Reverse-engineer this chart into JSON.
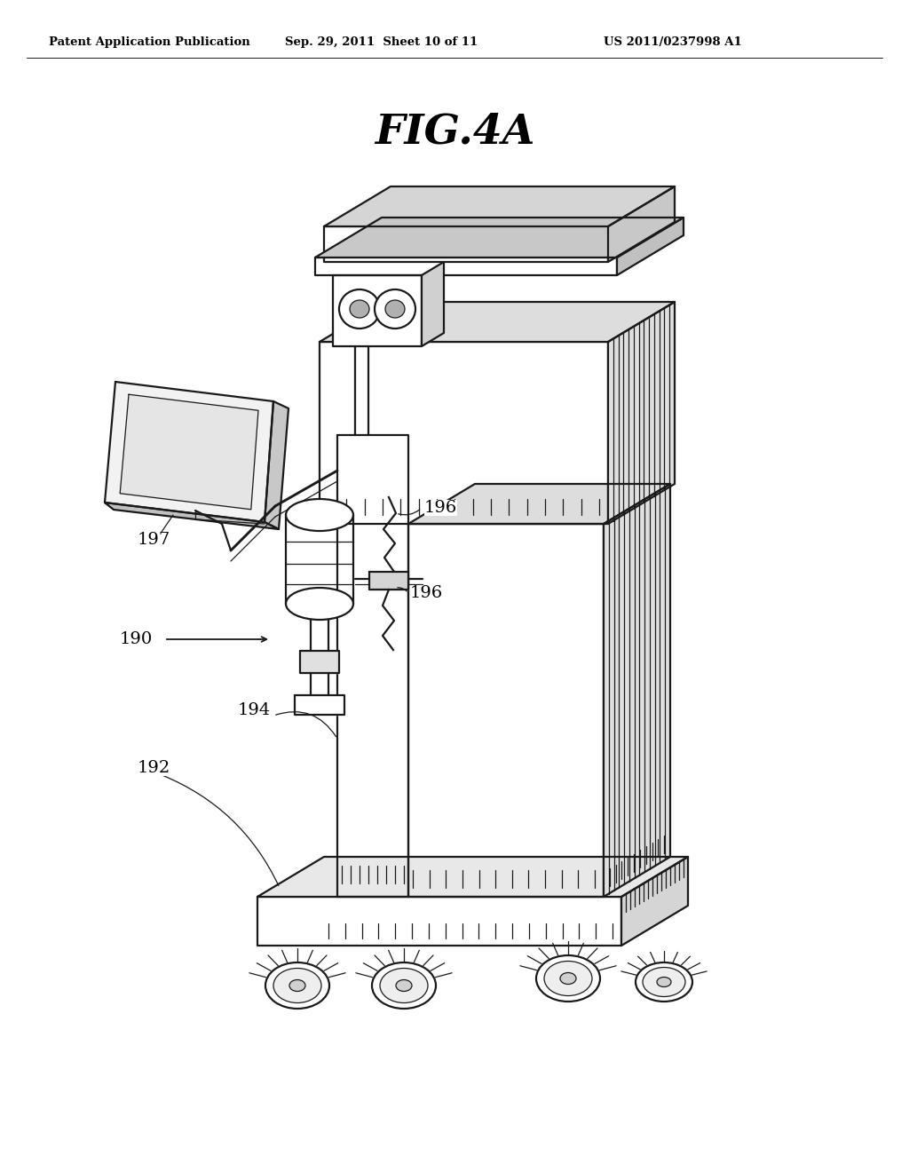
{
  "title": "FIG.4A",
  "header_left": "Patent Application Publication",
  "header_mid": "Sep. 29, 2011  Sheet 10 of 11",
  "header_right": "US 2011/0237998 A1",
  "bg_color": "#ffffff",
  "line_color": "#1a1a1a"
}
